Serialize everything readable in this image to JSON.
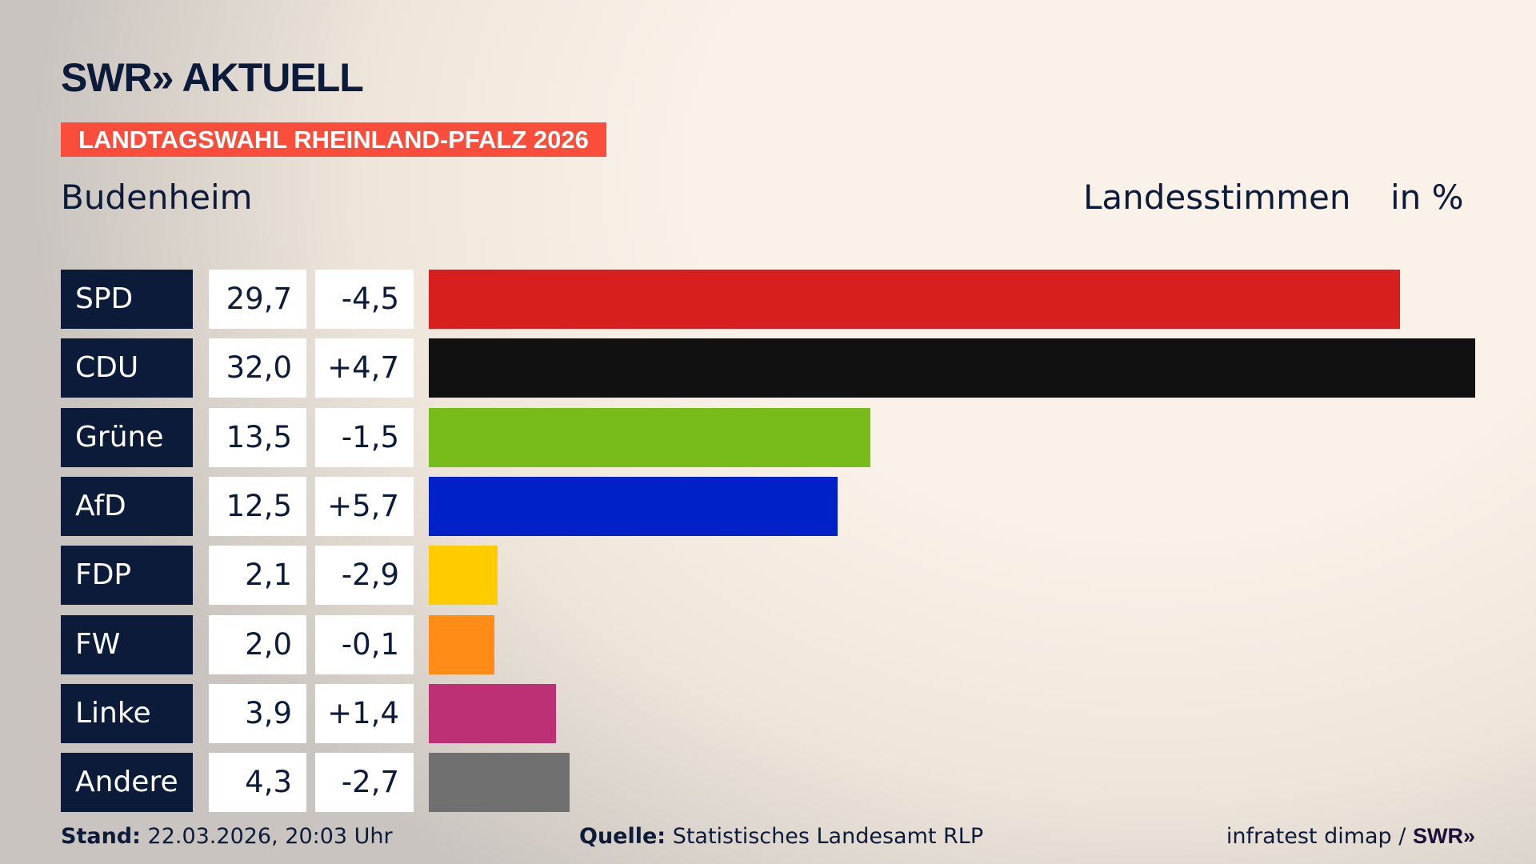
{
  "header": {
    "logo": "SWR» AKTUELL",
    "banner": "LANDTAGSWAHL RHEINLAND-PFALZ 2026",
    "place": "Budenheim",
    "measure": "Landesstimmen",
    "unit": "in %"
  },
  "chart_data": {
    "type": "bar",
    "title": "Landesstimmen in %",
    "categories": [
      "SPD",
      "CDU",
      "Grüne",
      "AfD",
      "FDP",
      "FW",
      "Linke",
      "Andere"
    ],
    "values": [
      29.7,
      32.0,
      13.5,
      12.5,
      2.1,
      2.0,
      3.9,
      4.3
    ],
    "value_labels": [
      "29,7",
      "32,0",
      "13,5",
      "12,5",
      "2,1",
      "2,0",
      "3,9",
      "4,3"
    ],
    "diff_labels": [
      "-4,5",
      "+4,7",
      "-1,5",
      "+5,7",
      "-2,9",
      "-0,1",
      "+1,4",
      "-2,7"
    ],
    "colors": [
      "#d71f1f",
      "#111111",
      "#78bc1b",
      "#0021c8",
      "#ffcc00",
      "#ff8c17",
      "#be3075",
      "#707070"
    ],
    "xlim": [
      0,
      32.0
    ]
  },
  "footer": {
    "stand_label": "Stand:",
    "stand_value": "22.03.2026, 20:03 Uhr",
    "source_label": "Quelle:",
    "source_value": "Statistisches Landesamt RLP",
    "credit": "infratest dimap /",
    "credit_logo": "SWR»"
  }
}
